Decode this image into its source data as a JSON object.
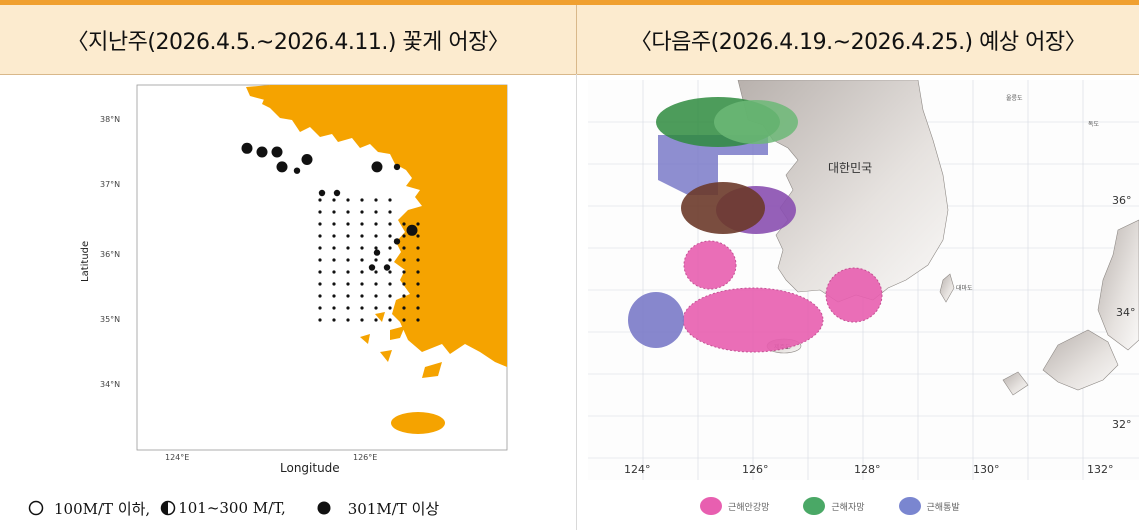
{
  "header": {
    "left_title": "〈지난주(2026.4.5.~2026.4.11.) 꽃게 어장〉",
    "right_title": "〈다음주(2026.4.19.~2026.4.25.) 예상 어장〉"
  },
  "left_map": {
    "y_axis_label": "Latitude",
    "x_axis_label": "Longitude",
    "lat_ticks": [
      "38°N",
      "37°N",
      "36°N",
      "35°N",
      "34°N"
    ],
    "lon_ticks": [
      "124°E",
      "126°E"
    ],
    "land_color": "#f5a300",
    "catch_points": [
      {
        "lon": 124.6,
        "lat": 37.35,
        "size": "large"
      },
      {
        "lon": 124.75,
        "lat": 37.3,
        "size": "large"
      },
      {
        "lon": 124.9,
        "lat": 37.3,
        "size": "large"
      },
      {
        "lon": 124.95,
        "lat": 37.1,
        "size": "large"
      },
      {
        "lon": 125.2,
        "lat": 37.2,
        "size": "large"
      },
      {
        "lon": 125.1,
        "lat": 37.05,
        "size": "medium"
      },
      {
        "lon": 125.9,
        "lat": 37.1,
        "size": "large"
      },
      {
        "lon": 126.1,
        "lat": 37.1,
        "size": "medium"
      },
      {
        "lon": 125.35,
        "lat": 36.75,
        "size": "medium"
      },
      {
        "lon": 125.5,
        "lat": 36.75,
        "size": "medium"
      },
      {
        "lon": 126.25,
        "lat": 36.25,
        "size": "large"
      },
      {
        "lon": 126.1,
        "lat": 36.1,
        "size": "medium"
      },
      {
        "lon": 125.85,
        "lat": 35.75,
        "size": "medium"
      },
      {
        "lon": 126.0,
        "lat": 35.75,
        "size": "medium"
      },
      {
        "lon": 125.9,
        "lat": 35.95,
        "size": "medium"
      }
    ],
    "legend": {
      "small": "100M/T 이하,",
      "medium": "101~300 M/T,",
      "large": "301M/T 이상"
    }
  },
  "right_map": {
    "lon_ticks": [
      "124°",
      "126°",
      "128°",
      "130°",
      "132°"
    ],
    "lat_ticks": [
      "36°",
      "34°",
      "32°"
    ],
    "country_label": "대한민국",
    "place_labels": [
      "울릉도",
      "독도",
      "대마도",
      "제주도"
    ],
    "zones": [
      {
        "color": "#2e8b3e",
        "name": "green"
      },
      {
        "color": "#7a7ac8",
        "name": "blue"
      },
      {
        "color": "#6b3a2a",
        "name": "brown"
      },
      {
        "color": "#8a4fb0",
        "name": "purple"
      },
      {
        "color": "#e85fb0",
        "name": "pink"
      }
    ],
    "legend": [
      {
        "label": "근해안강망",
        "color": "#e85fb0"
      },
      {
        "label": "근해자망",
        "color": "#4aa866"
      },
      {
        "label": "근해통발",
        "color": "#7a86d0"
      }
    ]
  }
}
